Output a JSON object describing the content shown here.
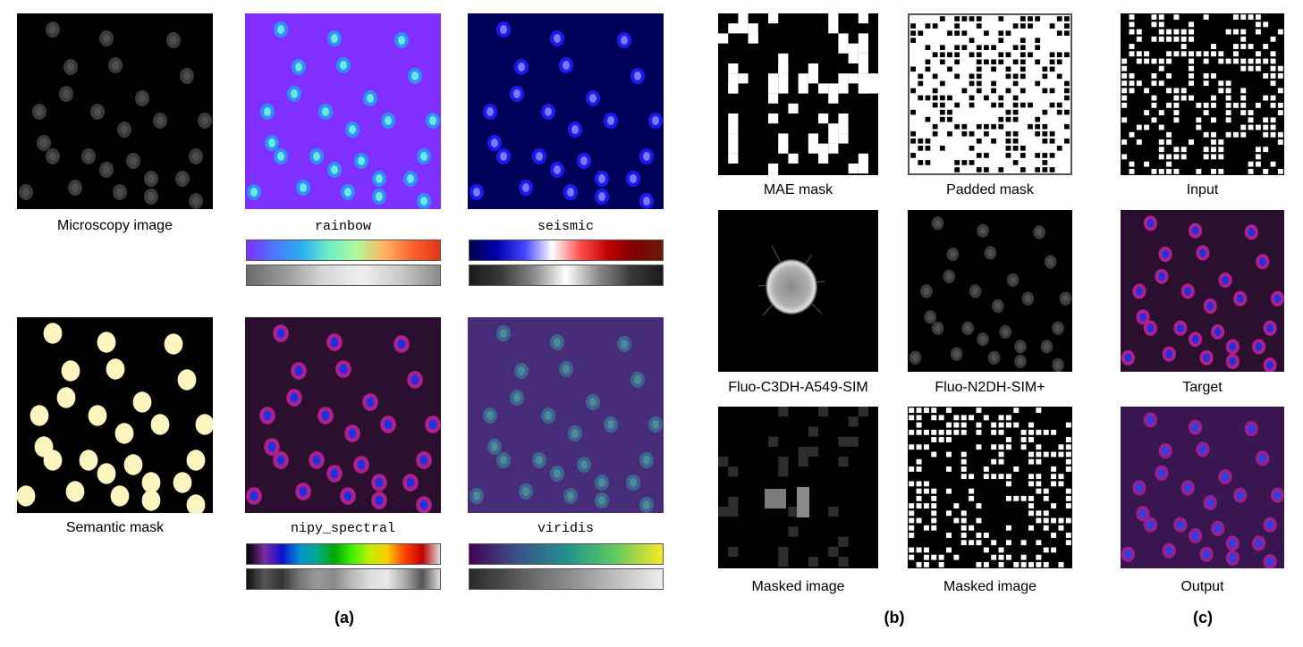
{
  "panel_a": {
    "label": "(a)",
    "microscopy_caption": "Microscopy image",
    "semantic_caption": "Semantic mask",
    "colormaps": [
      "rainbow",
      "seismic",
      "nipy_spectral",
      "viridis"
    ],
    "colors": {
      "rainbow_bg": "#7f2fff",
      "seismic_bg": "#00005a",
      "nipy_bg": "#2a0f2f",
      "viridis_bg": "#472c7a",
      "mask_blob": "#fdf5c0"
    }
  },
  "panel_b": {
    "label": "(b)",
    "captions": [
      "MAE mask",
      "Padded mask",
      "Fluo-C3DH-A549-SIM",
      "Fluo-N2DH-SIM+",
      "Masked image",
      "Masked image"
    ]
  },
  "panel_c": {
    "label": "(c)",
    "captions": [
      "Input",
      "Target",
      "Output"
    ]
  }
}
